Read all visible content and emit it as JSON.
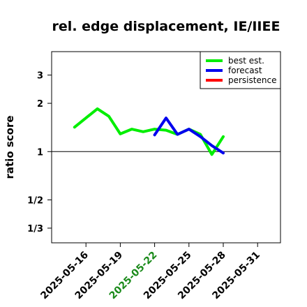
{
  "chart_data": {
    "type": "line",
    "title": "rel. edge displacement, IE/IIEE",
    "xlabel": "",
    "ylabel": "ratio score",
    "y_scale": "log",
    "ylim": [
      0.27,
      4.2
    ],
    "y_ticks": [
      {
        "value": 0.3333,
        "label": "1/3"
      },
      {
        "value": 0.5,
        "label": "1/2"
      },
      {
        "value": 1,
        "label": "1"
      },
      {
        "value": 2,
        "label": "2"
      },
      {
        "value": 3,
        "label": "3"
      }
    ],
    "reference_line": 1,
    "xlim": [
      "2025-05-13",
      "2025-06-02"
    ],
    "x_ticks": [
      {
        "date": "2025-05-16",
        "label": "2025-05-16",
        "color": "#000000"
      },
      {
        "date": "2025-05-19",
        "label": "2025-05-19",
        "color": "#000000"
      },
      {
        "date": "2025-05-22",
        "label": "2025-05-22",
        "color": "#1a8a1a"
      },
      {
        "date": "2025-05-25",
        "label": "2025-05-25",
        "color": "#000000"
      },
      {
        "date": "2025-05-28",
        "label": "2025-05-28",
        "color": "#000000"
      },
      {
        "date": "2025-05-31",
        "label": "2025-05-31",
        "color": "#000000"
      }
    ],
    "legend_position": "top-right",
    "series": [
      {
        "name": "best est.",
        "color": "#00ee00",
        "points": [
          {
            "x": "2025-05-15",
            "y": 1.42
          },
          {
            "x": "2025-05-16",
            "y": 1.62
          },
          {
            "x": "2025-05-17",
            "y": 1.85
          },
          {
            "x": "2025-05-18",
            "y": 1.66
          },
          {
            "x": "2025-05-19",
            "y": 1.29
          },
          {
            "x": "2025-05-20",
            "y": 1.38
          },
          {
            "x": "2025-05-21",
            "y": 1.33
          },
          {
            "x": "2025-05-22",
            "y": 1.38
          },
          {
            "x": "2025-05-23",
            "y": 1.36
          },
          {
            "x": "2025-05-24",
            "y": 1.28
          },
          {
            "x": "2025-05-25",
            "y": 1.38
          },
          {
            "x": "2025-05-26",
            "y": 1.28
          },
          {
            "x": "2025-05-27",
            "y": 0.96
          },
          {
            "x": "2025-05-28",
            "y": 1.24
          }
        ]
      },
      {
        "name": "forecast",
        "color": "#0000ee",
        "points": [
          {
            "x": "2025-05-22",
            "y": 1.27
          },
          {
            "x": "2025-05-23",
            "y": 1.62
          },
          {
            "x": "2025-05-24",
            "y": 1.28
          },
          {
            "x": "2025-05-25",
            "y": 1.38
          },
          {
            "x": "2025-05-26",
            "y": 1.24
          },
          {
            "x": "2025-05-27",
            "y": 1.09
          },
          {
            "x": "2025-05-28",
            "y": 0.98
          }
        ]
      },
      {
        "name": "persistence",
        "color": "#ff0000",
        "points": []
      }
    ]
  }
}
